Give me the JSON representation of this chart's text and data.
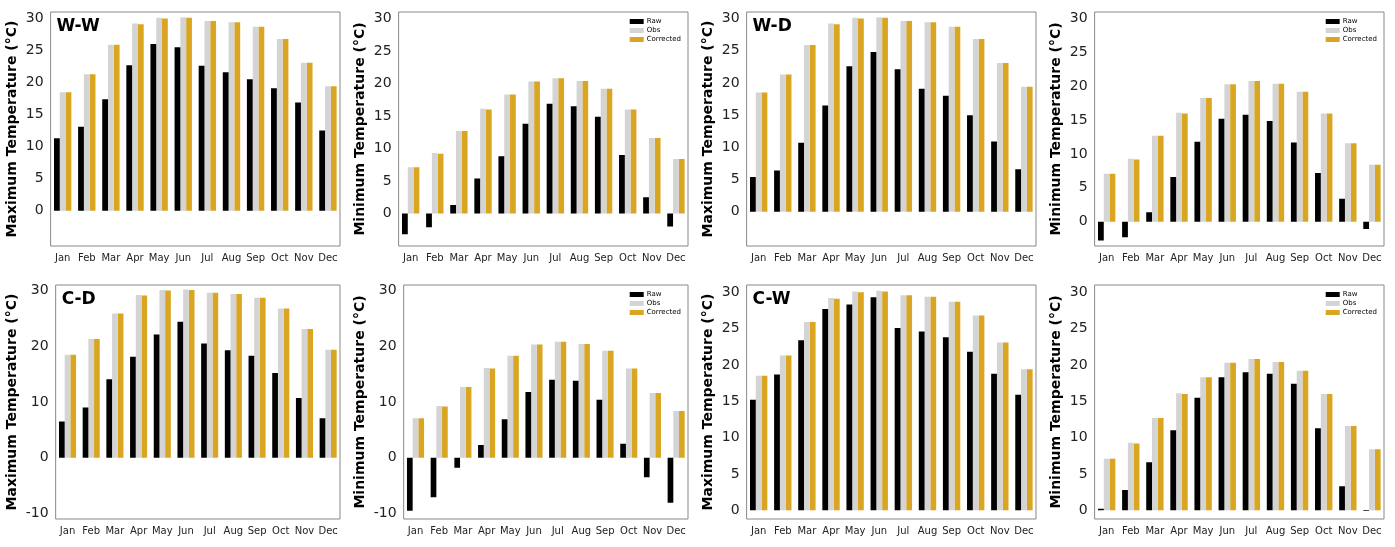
{
  "chart_data": [
    {
      "type": "bar",
      "title": "W-W",
      "ylabel": "Maximum Temperature (°C)",
      "categories": [
        "Jan",
        "Feb",
        "Mar",
        "Apr",
        "May",
        "Jun",
        "Jul",
        "Aug",
        "Sep",
        "Oct",
        "Nov",
        "Dec"
      ],
      "ylim": [
        -5.5,
        31
      ],
      "yticks": [
        0,
        5,
        10,
        15,
        20,
        25,
        30
      ],
      "grid": false,
      "legend": false,
      "series": [
        {
          "color": "#000000",
          "values": [
            11.3,
            13.1,
            17.4,
            22.7,
            26.0,
            25.5,
            22.6,
            21.6,
            20.5,
            19.1,
            16.9,
            12.5
          ]
        },
        {
          "color": "#d4d4d4",
          "values": [
            18.5,
            21.3,
            25.9,
            29.2,
            30.1,
            30.2,
            29.6,
            29.4,
            28.7,
            26.8,
            23.1,
            19.4
          ]
        },
        {
          "color": "#daa520",
          "values": [
            18.5,
            21.3,
            25.9,
            29.1,
            30.0,
            30.1,
            29.6,
            29.4,
            28.7,
            26.8,
            23.1,
            19.4
          ]
        }
      ]
    },
    {
      "type": "bar",
      "ylabel": "Minimum Temperature (°C)",
      "categories": [
        "Jan",
        "Feb",
        "Mar",
        "Apr",
        "May",
        "Jun",
        "Jul",
        "Aug",
        "Sep",
        "Oct",
        "Nov",
        "Dec"
      ],
      "ylim": [
        -5,
        31
      ],
      "yticks": [
        0,
        5,
        10,
        15,
        20,
        25,
        30
      ],
      "grid": false,
      "legend": "top right",
      "series": [
        {
          "name": "Raw",
          "color": "#000000",
          "values": [
            -3.2,
            -2.1,
            1.3,
            5.4,
            8.8,
            13.8,
            16.9,
            16.5,
            14.9,
            9.0,
            2.5,
            -2.0
          ]
        },
        {
          "name": "Obs",
          "color": "#d4d4d4",
          "values": [
            7.1,
            9.3,
            12.7,
            16.1,
            18.3,
            20.3,
            20.8,
            20.4,
            19.2,
            16.0,
            11.6,
            8.4
          ]
        },
        {
          "name": "Corrected",
          "color": "#daa520",
          "values": [
            7.1,
            9.2,
            12.7,
            16.0,
            18.3,
            20.3,
            20.8,
            20.4,
            19.2,
            16.0,
            11.6,
            8.4
          ]
        }
      ]
    },
    {
      "type": "bar",
      "title": "W-D",
      "ylabel": "Maximum Temperature (°C)",
      "categories": [
        "Jan",
        "Feb",
        "Mar",
        "Apr",
        "May",
        "Jun",
        "Jul",
        "Aug",
        "Sep",
        "Oct",
        "Nov",
        "Dec"
      ],
      "ylim": [
        -5.3,
        31
      ],
      "yticks": [
        0,
        5,
        10,
        15,
        20,
        25,
        30
      ],
      "grid": false,
      "legend": false,
      "series": [
        {
          "color": "#000000",
          "values": [
            5.4,
            6.4,
            10.7,
            16.5,
            22.6,
            24.8,
            22.1,
            19.1,
            18.0,
            15.0,
            10.9,
            6.6
          ]
        },
        {
          "color": "#d4d4d4",
          "values": [
            18.5,
            21.3,
            25.9,
            29.2,
            30.1,
            30.2,
            29.6,
            29.4,
            28.7,
            26.8,
            23.1,
            19.4
          ]
        },
        {
          "color": "#daa520",
          "values": [
            18.5,
            21.3,
            25.9,
            29.1,
            30.0,
            30.1,
            29.6,
            29.4,
            28.7,
            26.8,
            23.1,
            19.4
          ]
        }
      ]
    },
    {
      "type": "bar",
      "ylabel": "Minimum Temperature (°C)",
      "categories": [
        "Jan",
        "Feb",
        "Mar",
        "Apr",
        "May",
        "Jun",
        "Jul",
        "Aug",
        "Sep",
        "Oct",
        "Nov",
        "Dec"
      ],
      "ylim": [
        -3.6,
        31
      ],
      "yticks": [
        0,
        5,
        10,
        15,
        20,
        25,
        30
      ],
      "grid": false,
      "legend": "top right",
      "series": [
        {
          "name": "Raw",
          "color": "#000000",
          "values": [
            -2.8,
            -2.3,
            1.4,
            6.6,
            11.8,
            15.2,
            15.8,
            14.9,
            11.7,
            7.2,
            3.4,
            -1.1
          ]
        },
        {
          "name": "Obs",
          "color": "#d4d4d4",
          "values": [
            7.1,
            9.3,
            12.7,
            16.1,
            18.3,
            20.3,
            20.8,
            20.4,
            19.2,
            16.0,
            11.6,
            8.4
          ]
        },
        {
          "name": "Corrected",
          "color": "#daa520",
          "values": [
            7.1,
            9.2,
            12.7,
            16.0,
            18.3,
            20.3,
            20.8,
            20.4,
            19.2,
            16.0,
            11.6,
            8.4
          ]
        }
      ]
    },
    {
      "type": "bar",
      "title": "C-D",
      "ylabel": "Maximum Temperature (°C)",
      "categories": [
        "Jan",
        "Feb",
        "Mar",
        "Apr",
        "May",
        "Jun",
        "Jul",
        "Aug",
        "Sep",
        "Oct",
        "Nov",
        "Dec"
      ],
      "ylim": [
        -11,
        31
      ],
      "yticks": [
        -10,
        0,
        10,
        20,
        30
      ],
      "grid": false,
      "legend": false,
      "series": [
        {
          "color": "#000000",
          "values": [
            6.5,
            9.0,
            14.1,
            18.1,
            22.1,
            24.4,
            20.5,
            19.3,
            18.3,
            15.2,
            10.7,
            7.1
          ]
        },
        {
          "color": "#d4d4d4",
          "values": [
            18.5,
            21.3,
            25.9,
            29.2,
            30.1,
            30.2,
            29.6,
            29.4,
            28.7,
            26.8,
            23.1,
            19.4
          ]
        },
        {
          "color": "#daa520",
          "values": [
            18.5,
            21.3,
            25.9,
            29.1,
            30.0,
            30.1,
            29.6,
            29.4,
            28.7,
            26.8,
            23.1,
            19.4
          ]
        }
      ]
    },
    {
      "type": "bar",
      "ylabel": "Minimum Temperature (°C)",
      "categories": [
        "Jan",
        "Feb",
        "Mar",
        "Apr",
        "May",
        "Jun",
        "Jul",
        "Aug",
        "Sep",
        "Oct",
        "Nov",
        "Dec"
      ],
      "ylim": [
        -11,
        31
      ],
      "yticks": [
        -10,
        0,
        10,
        20,
        30
      ],
      "grid": false,
      "legend": "top right",
      "series": [
        {
          "name": "Raw",
          "color": "#000000",
          "values": [
            -9.5,
            -7.1,
            -1.8,
            2.3,
            6.9,
            11.8,
            14.0,
            13.8,
            10.4,
            2.5,
            -3.5,
            -8.1
          ]
        },
        {
          "name": "Obs",
          "color": "#d4d4d4",
          "values": [
            7.1,
            9.3,
            12.7,
            16.1,
            18.3,
            20.3,
            20.8,
            20.4,
            19.2,
            16.0,
            11.6,
            8.4
          ]
        },
        {
          "name": "Corrected",
          "color": "#daa520",
          "values": [
            7.1,
            9.2,
            12.7,
            16.0,
            18.3,
            20.3,
            20.8,
            20.4,
            19.2,
            16.0,
            11.6,
            8.4
          ]
        }
      ]
    },
    {
      "type": "bar",
      "title": "C-W",
      "ylabel": "Maximum Temperature (°C)",
      "categories": [
        "Jan",
        "Feb",
        "Mar",
        "Apr",
        "May",
        "Jun",
        "Jul",
        "Aug",
        "Sep",
        "Oct",
        "Nov",
        "Dec"
      ],
      "ylim": [
        -1.2,
        31
      ],
      "yticks": [
        0,
        5,
        10,
        15,
        20,
        25,
        30
      ],
      "grid": false,
      "legend": false,
      "series": [
        {
          "color": "#000000",
          "values": [
            15.2,
            18.7,
            23.4,
            27.7,
            28.3,
            29.3,
            25.1,
            24.6,
            23.8,
            21.8,
            18.8,
            15.9
          ]
        },
        {
          "color": "#d4d4d4",
          "values": [
            18.5,
            21.3,
            25.9,
            29.2,
            30.1,
            30.2,
            29.6,
            29.4,
            28.7,
            26.8,
            23.1,
            19.4
          ]
        },
        {
          "color": "#daa520",
          "values": [
            18.5,
            21.3,
            25.9,
            29.1,
            30.0,
            30.1,
            29.6,
            29.4,
            28.7,
            26.8,
            23.1,
            19.4
          ]
        }
      ]
    },
    {
      "type": "bar",
      "ylabel": "Minimum Temperature (°C)",
      "categories": [
        "Jan",
        "Feb",
        "Mar",
        "Apr",
        "May",
        "Jun",
        "Jul",
        "Aug",
        "Sep",
        "Oct",
        "Nov",
        "Dec"
      ],
      "ylim": [
        -1.2,
        31
      ],
      "yticks": [
        0,
        5,
        10,
        15,
        20,
        25,
        30
      ],
      "grid": false,
      "legend": "top right",
      "series": [
        {
          "name": "Raw",
          "color": "#000000",
          "values": [
            0.2,
            2.8,
            6.6,
            11.0,
            15.5,
            18.3,
            19.0,
            18.8,
            17.4,
            11.3,
            3.3,
            -0.1
          ]
        },
        {
          "name": "Obs",
          "color": "#d4d4d4",
          "values": [
            7.1,
            9.3,
            12.7,
            16.1,
            18.3,
            20.3,
            20.8,
            20.4,
            19.2,
            16.0,
            11.6,
            8.4
          ]
        },
        {
          "name": "Corrected",
          "color": "#daa520",
          "values": [
            7.1,
            9.2,
            12.7,
            16.0,
            18.3,
            20.3,
            20.8,
            20.4,
            19.2,
            16.0,
            11.6,
            8.4
          ]
        }
      ]
    }
  ]
}
